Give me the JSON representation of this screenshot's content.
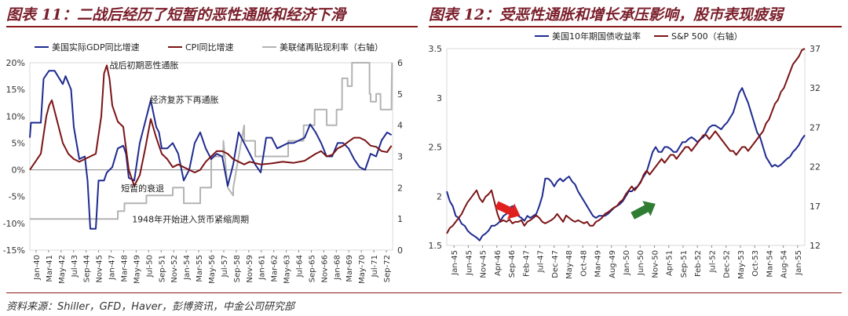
{
  "left_title": "图表 11：二战后经历了短暂的恶性通胀和经济下滑",
  "right_title": "图表 12：受恶性通胀和增长承压影响，股市表现疲弱",
  "source": "资料来源：Shiller，GFD，Haver，彭博资讯，中金公司研究部",
  "colors": {
    "navy": "#1f2b8f",
    "maroon": "#7b1416",
    "gray": "#b3b3b3",
    "title": "#7a1f2b",
    "red_arrow": "#e0201e",
    "green_arrow": "#2e7d32"
  },
  "chart_data": [
    {
      "type": "line",
      "legend_placement": "top",
      "x_ticks": [
        "Jan-40",
        "Mar-41",
        "May-42",
        "Jul-43",
        "Sep-44",
        "Nov-45",
        "Jan-47",
        "Mar-48",
        "May-49",
        "Jul-50",
        "Sep-51",
        "Nov-52",
        "Jan-54",
        "Mar-55",
        "May-56",
        "Jul-57",
        "Sep-58",
        "Nov-59",
        "Jan-61",
        "Mar-62",
        "May-63",
        "Jul-64",
        "Sep-65",
        "Nov-66",
        "Jan-68",
        "Mar-69",
        "May-70",
        "Jul-71",
        "Sep-72"
      ],
      "y_left": {
        "min": -15,
        "max": 20,
        "ticks": [
          "-15%",
          "-10%",
          "-5%",
          "0%",
          "5%",
          "10%",
          "15%",
          "20%"
        ],
        "values": [
          -15,
          -10,
          -5,
          0,
          5,
          10,
          15,
          20
        ]
      },
      "y_right": {
        "min": 0,
        "max": 6,
        "ticks": [
          "0",
          "1",
          "2",
          "3",
          "4",
          "5",
          "6"
        ],
        "values": [
          0,
          1,
          2,
          3,
          4,
          5,
          6
        ]
      },
      "annotations": [
        {
          "text": "战后初期恶性通胀",
          "x": 1947.25,
          "y": 19.0,
          "axis": "left"
        },
        {
          "text": "经济复苏下再通胀",
          "x": 1950.9,
          "y": 12.5,
          "axis": "left"
        },
        {
          "text": "短暂的衰退",
          "x": 1948.3,
          "y": -4.0,
          "axis": "left"
        },
        {
          "text": "1948年开始进入货币紧缩周期",
          "x": 1949.3,
          "y": -9.8,
          "axis": "left"
        }
      ],
      "series": [
        {
          "name": "美国实际GDP同比增速",
          "axis": "left",
          "color_key": "navy",
          "x": [
            1940.0,
            1940.1,
            1941.0,
            1941.25,
            1941.75,
            1942.25,
            1943.0,
            1943.25,
            1943.75,
            1944.0,
            1944.5,
            1945.0,
            1945.25,
            1945.5,
            1945.75,
            1946.0,
            1946.25,
            1946.75,
            1947.0,
            1947.5,
            1948.0,
            1948.5,
            1948.75,
            1949.0,
            1949.5,
            1950.0,
            1950.5,
            1951.0,
            1951.5,
            1951.75,
            1952.0,
            1952.5,
            1953.0,
            1953.5,
            1954.0,
            1954.5,
            1955.0,
            1955.5,
            1956.0,
            1956.5,
            1957.0,
            1957.5,
            1958.0,
            1958.5,
            1959.0,
            1959.5,
            1960.0,
            1960.5,
            1961.0,
            1961.5,
            1962.0,
            1962.5,
            1963.0,
            1963.5,
            1964.0,
            1964.5,
            1965.0,
            1965.5,
            1966.0,
            1966.5,
            1967.0,
            1967.5,
            1968.0,
            1968.5,
            1969.0,
            1969.5,
            1970.0,
            1970.5,
            1971.0,
            1971.5,
            1972.0,
            1972.5,
            1972.9
          ],
          "values": [
            6.0,
            8.8,
            8.8,
            17.0,
            18.5,
            18.5,
            16.0,
            17.5,
            15.0,
            8.0,
            2.0,
            2.5,
            -2.0,
            -11.0,
            -11.0,
            -11.0,
            -2.0,
            -2.0,
            -0.5,
            0.5,
            4.0,
            4.5,
            3.0,
            -1.5,
            -2.0,
            5.0,
            9.0,
            13.0,
            8.0,
            7.0,
            4.0,
            4.0,
            5.0,
            3.0,
            -2.0,
            0.0,
            5.0,
            7.0,
            4.0,
            2.0,
            3.0,
            2.5,
            -3.0,
            1.0,
            7.0,
            5.0,
            3.0,
            1.0,
            -0.5,
            6.0,
            6.0,
            4.0,
            4.5,
            5.0,
            5.0,
            5.5,
            6.0,
            8.5,
            7.0,
            5.0,
            2.5,
            2.5,
            5.0,
            5.0,
            4.0,
            2.0,
            0.5,
            0.0,
            3.0,
            2.5,
            5.5,
            7.0,
            6.5
          ]
        },
        {
          "name": "CPI同比增速",
          "axis": "left",
          "color_key": "maroon",
          "x": [
            1940.0,
            1940.5,
            1941.0,
            1941.5,
            1941.75,
            1942.0,
            1942.5,
            1943.0,
            1943.5,
            1944.0,
            1944.5,
            1945.0,
            1945.5,
            1946.0,
            1946.5,
            1946.75,
            1947.0,
            1947.25,
            1947.5,
            1948.0,
            1948.5,
            1949.0,
            1949.5,
            1950.0,
            1950.5,
            1951.0,
            1951.5,
            1952.0,
            1952.5,
            1953.0,
            1953.5,
            1954.0,
            1954.5,
            1955.0,
            1955.5,
            1956.0,
            1956.5,
            1957.0,
            1957.5,
            1958.0,
            1958.5,
            1959.0,
            1959.5,
            1960.0,
            1961.0,
            1962.0,
            1963.0,
            1964.0,
            1965.0,
            1966.0,
            1966.5,
            1967.0,
            1967.5,
            1968.0,
            1968.5,
            1969.0,
            1969.5,
            1970.0,
            1970.5,
            1971.0,
            1971.5,
            1972.0,
            1972.5,
            1972.9
          ],
          "values": [
            0.0,
            1.5,
            3.0,
            10.0,
            12.0,
            13.0,
            9.0,
            5.0,
            3.0,
            2.0,
            1.5,
            2.0,
            2.5,
            3.0,
            10.0,
            18.0,
            19.5,
            17.0,
            12.0,
            9.0,
            8.0,
            0.0,
            -3.0,
            -1.0,
            4.0,
            9.5,
            6.0,
            3.0,
            2.0,
            0.5,
            1.0,
            0.5,
            0.0,
            -0.5,
            0.0,
            1.5,
            2.5,
            3.5,
            3.5,
            3.0,
            2.0,
            1.5,
            1.0,
            1.5,
            1.0,
            1.2,
            1.5,
            1.3,
            1.7,
            3.0,
            3.5,
            2.5,
            2.8,
            4.0,
            4.5,
            5.3,
            6.0,
            6.0,
            5.5,
            4.5,
            4.3,
            3.5,
            3.3,
            4.5
          ]
        },
        {
          "name": "美联储再贴现利率（右轴）",
          "axis": "right",
          "color_key": "gray",
          "x": [
            1940.0,
            1948.0,
            1948.01,
            1948.6,
            1948.61,
            1950.6,
            1950.61,
            1953.0,
            1953.01,
            1954.0,
            1954.01,
            1955.5,
            1955.51,
            1956.5,
            1956.51,
            1957.6,
            1957.61,
            1958.0,
            1958.5,
            1958.51,
            1959.0,
            1959.5,
            1959.51,
            1960.5,
            1960.51,
            1963.5,
            1963.51,
            1964.9,
            1964.91,
            1965.9,
            1965.91,
            1966.0,
            1967.0,
            1967.01,
            1967.9,
            1967.91,
            1968.4,
            1968.41,
            1968.9,
            1968.91,
            1969.3,
            1969.31,
            1970.9,
            1970.91,
            1971.0,
            1971.01,
            1971.5,
            1971.51,
            1971.9,
            1971.91,
            1972.9,
            1972.91,
            1972.95
          ],
          "values": [
            1.0,
            1.0,
            1.25,
            1.25,
            1.5,
            1.5,
            1.75,
            1.75,
            2.0,
            2.0,
            1.5,
            1.5,
            2.0,
            2.0,
            3.0,
            3.0,
            3.5,
            2.0,
            1.75,
            2.0,
            3.0,
            4.0,
            3.5,
            3.5,
            3.0,
            3.0,
            3.5,
            3.5,
            4.0,
            4.0,
            4.5,
            4.5,
            4.5,
            4.0,
            4.0,
            4.5,
            4.5,
            5.5,
            5.5,
            5.25,
            5.25,
            6.0,
            6.0,
            5.0,
            5.0,
            4.75,
            4.75,
            5.0,
            5.0,
            4.5,
            4.5,
            5.0,
            6.0
          ]
        }
      ]
    },
    {
      "type": "line",
      "legend_placement": "top",
      "x_ticks": [
        "Jan-45",
        "Jun-45",
        "Nov-45",
        "Apr-46",
        "Sep-46",
        "Feb-47",
        "Jul-47",
        "Dec-47",
        "May-48",
        "Oct-48",
        "Mar-49",
        "Aug-49",
        "Jan-50",
        "Jun-50",
        "Nov-50",
        "Apr-51",
        "Sep-51",
        "Feb-52",
        "Jul-52",
        "Dec-52",
        "May-53",
        "Oct-53",
        "Mar-54",
        "Aug-54",
        "Jan-55"
      ],
      "y_left": {
        "min": 1.5,
        "max": 3.5,
        "ticks": [
          "1.5",
          "2",
          "2.5",
          "3",
          "3.5"
        ],
        "values": [
          1.5,
          2.0,
          2.5,
          3.0,
          3.5
        ]
      },
      "y_right": {
        "min": 12,
        "max": 37,
        "ticks": [
          "12",
          "17",
          "22",
          "27",
          "32",
          "37"
        ],
        "values": [
          12,
          17,
          22,
          27,
          32,
          37
        ]
      },
      "series": [
        {
          "name": "美国10年期国债收益率",
          "axis": "left",
          "color_key": "navy",
          "x": [
            0,
            1,
            2,
            3,
            4,
            5,
            6,
            7,
            8,
            9,
            10,
            11,
            12,
            13,
            14,
            15,
            16,
            17,
            18,
            19,
            20,
            21,
            22,
            23,
            24,
            25,
            26,
            27,
            28,
            29,
            30,
            31,
            32,
            33,
            34,
            35,
            36,
            37,
            38,
            39,
            40,
            41,
            42,
            43,
            44,
            45,
            46,
            47,
            48,
            49,
            50,
            51,
            52,
            53,
            54,
            55,
            56,
            57,
            58,
            59,
            60,
            61,
            62,
            63,
            64,
            65,
            66,
            67,
            68,
            69,
            70,
            71,
            72,
            73,
            74,
            75,
            76,
            77,
            78,
            79,
            80,
            81,
            82,
            83,
            84,
            85,
            86,
            87,
            88,
            89,
            90,
            91,
            92,
            93,
            94,
            95,
            96,
            97,
            98,
            99,
            100,
            101,
            102,
            103,
            104,
            105,
            106,
            107,
            108,
            109,
            110,
            111,
            112,
            113,
            114,
            115,
            116,
            117,
            118,
            119,
            120
          ],
          "values": [
            2.05,
            1.95,
            1.9,
            1.8,
            1.78,
            1.72,
            1.7,
            1.65,
            1.62,
            1.6,
            1.58,
            1.55,
            1.6,
            1.62,
            1.65,
            1.7,
            1.7,
            1.72,
            1.75,
            1.8,
            1.82,
            1.88,
            1.9,
            1.85,
            1.8,
            1.78,
            1.75,
            1.8,
            1.78,
            1.8,
            1.82,
            1.9,
            2.0,
            2.18,
            2.18,
            2.15,
            2.1,
            2.15,
            2.18,
            2.15,
            2.18,
            2.2,
            2.15,
            2.12,
            2.05,
            2.0,
            1.95,
            1.9,
            1.85,
            1.8,
            1.78,
            1.8,
            1.8,
            1.8,
            1.82,
            1.85,
            1.88,
            1.9,
            1.92,
            1.95,
            2.0,
            2.05,
            2.05,
            2.08,
            2.1,
            2.15,
            2.2,
            2.25,
            2.35,
            2.45,
            2.5,
            2.45,
            2.45,
            2.5,
            2.5,
            2.48,
            2.45,
            2.45,
            2.5,
            2.55,
            2.55,
            2.58,
            2.6,
            2.58,
            2.55,
            2.58,
            2.6,
            2.65,
            2.7,
            2.72,
            2.72,
            2.7,
            2.68,
            2.72,
            2.75,
            2.8,
            2.85,
            2.95,
            3.05,
            3.1,
            3.02,
            2.95,
            2.85,
            2.75,
            2.65,
            2.6,
            2.5,
            2.4,
            2.35,
            2.3,
            2.32,
            2.3,
            2.32,
            2.35,
            2.38,
            2.4,
            2.45,
            2.48,
            2.52,
            2.58,
            2.62
          ]
        },
        {
          "name": "S&P 500（右轴）",
          "axis": "right",
          "color_key": "maroon",
          "x": [
            0,
            1,
            2,
            3,
            4,
            5,
            6,
            7,
            8,
            9,
            10,
            11,
            12,
            13,
            14,
            15,
            16,
            17,
            18,
            19,
            20,
            21,
            22,
            23,
            24,
            25,
            26,
            27,
            28,
            29,
            30,
            31,
            32,
            33,
            34,
            35,
            36,
            37,
            38,
            39,
            40,
            41,
            42,
            43,
            44,
            45,
            46,
            47,
            48,
            49,
            50,
            51,
            52,
            53,
            54,
            55,
            56,
            57,
            58,
            59,
            60,
            61,
            62,
            63,
            64,
            65,
            66,
            67,
            68,
            69,
            70,
            71,
            72,
            73,
            74,
            75,
            76,
            77,
            78,
            79,
            80,
            81,
            82,
            83,
            84,
            85,
            86,
            87,
            88,
            89,
            90,
            91,
            92,
            93,
            94,
            95,
            96,
            97,
            98,
            99,
            100,
            101,
            102,
            103,
            104,
            105,
            106,
            107,
            108,
            109,
            110,
            111,
            112,
            113,
            114,
            115,
            116,
            117,
            118,
            119,
            120
          ],
          "values": [
            13.5,
            14.2,
            14.5,
            15.0,
            15.5,
            16.0,
            16.8,
            17.5,
            18.0,
            18.5,
            19.0,
            18.0,
            17.5,
            18.2,
            18.5,
            19.0,
            17.5,
            16.0,
            15.0,
            15.2,
            15.0,
            15.3,
            14.8,
            15.0,
            15.0,
            15.2,
            14.5,
            15.0,
            15.2,
            15.5,
            15.8,
            15.5,
            15.0,
            14.8,
            15.0,
            15.2,
            15.5,
            16.0,
            15.5,
            15.0,
            15.8,
            15.5,
            15.2,
            15.0,
            15.2,
            15.0,
            14.8,
            15.0,
            14.5,
            14.5,
            15.0,
            15.2,
            15.5,
            16.0,
            16.2,
            16.5,
            16.8,
            17.0,
            17.5,
            17.8,
            18.5,
            19.0,
            19.5,
            19.0,
            19.5,
            20.0,
            21.0,
            21.5,
            21.0,
            21.5,
            22.0,
            22.5,
            23.0,
            22.5,
            23.0,
            23.5,
            23.5,
            23.0,
            23.5,
            24.0,
            24.5,
            24.5,
            24.0,
            24.5,
            25.0,
            25.5,
            26.0,
            26.0,
            25.5,
            26.0,
            26.5,
            26.0,
            25.5,
            25.0,
            24.5,
            24.0,
            24.0,
            23.5,
            24.0,
            24.5,
            24.5,
            24.0,
            24.5,
            25.0,
            25.5,
            26.0,
            26.5,
            27.5,
            28.0,
            29.0,
            30.0,
            30.5,
            31.5,
            32.0,
            33.0,
            34.0,
            35.0,
            35.5,
            36.0,
            36.8,
            37.0
          ]
        }
      ],
      "arrows": [
        {
          "x": 20.5,
          "y": 16.5,
          "direction": "down-right",
          "axis": "right",
          "color_key": "red_arrow"
        },
        {
          "x": 66.0,
          "y": 16.5,
          "direction": "up-right",
          "axis": "right",
          "color_key": "green_arrow"
        }
      ]
    }
  ]
}
